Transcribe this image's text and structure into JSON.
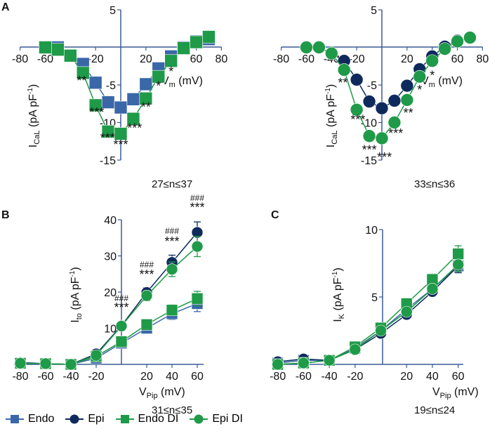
{
  "panel_labels": {
    "a": "A",
    "b": "B",
    "c": "C"
  },
  "colors": {
    "endo": "#3a67a8",
    "epi": "#0e2a5c",
    "endo_di": "#1f9a48",
    "epi_di": "#1f9a48",
    "axis": "#3a5a95"
  },
  "legend": [
    {
      "name": "Endo",
      "marker": "square",
      "color": "#3a67a8"
    },
    {
      "name": "Epi",
      "marker": "circle",
      "color": "#0e2a5c"
    },
    {
      "name": "Endo DI",
      "marker": "square",
      "color": "#1f9a48"
    },
    {
      "name": "Epi DI",
      "marker": "circle",
      "color": "#1f9a48"
    }
  ],
  "chart_data": [
    {
      "id": "A-endo",
      "type": "line",
      "xlabel": "V",
      "xlabel_sub": "m",
      "xlabel_unit": " (mV)",
      "ylabel": "I",
      "ylabel_sub": "CaL",
      "ylabel_unit": " (pA pF",
      "ylabel_sup": "-1",
      "ylabel_end": ")",
      "xlim": [
        -80,
        80
      ],
      "ylim": [
        -15,
        5
      ],
      "xticks": [
        -80,
        -60,
        -20,
        20,
        60,
        80
      ],
      "yticks": [
        5,
        -5,
        -10,
        -15
      ],
      "n_label": "27≤n≤37",
      "x": [
        -60,
        -50,
        -40,
        -30,
        -20,
        -10,
        0,
        10,
        20,
        30,
        40,
        50,
        60,
        70
      ],
      "series": [
        {
          "name": "Endo",
          "marker": "square",
          "color": "#3a67a8",
          "values": [
            0,
            0,
            -1.1,
            -2.2,
            -4.7,
            -7.3,
            -8.0,
            -6.9,
            -4.9,
            -2.8,
            -1.2,
            0,
            0.8,
            1.1
          ]
        },
        {
          "name": "Endo DI",
          "marker": "square",
          "color": "#1f9a48",
          "values": [
            0,
            -0.3,
            -1.1,
            -3.4,
            -7.7,
            -11.2,
            -11.5,
            -9.5,
            -6.8,
            -3.9,
            -1.8,
            -0.1,
            0.7,
            1.4
          ]
        }
      ],
      "annotations": [
        {
          "x": -31,
          "y": -5,
          "text": "**"
        },
        {
          "x": -19,
          "y": -9.2,
          "text": "***"
        },
        {
          "x": -10.5,
          "y": -12.6,
          "text": "***"
        },
        {
          "x": 0,
          "y": -13.5,
          "text": "***"
        },
        {
          "x": 11,
          "y": -11.3,
          "text": "***"
        },
        {
          "x": 20,
          "y": -8.5,
          "text": "**"
        },
        {
          "x": 30,
          "y": -5.7,
          "text": "*"
        },
        {
          "x": 40,
          "y": -3.8,
          "text": "*"
        }
      ]
    },
    {
      "id": "A-epi",
      "type": "line",
      "xlabel": "V",
      "xlabel_sub": "m",
      "xlabel_unit": " (mV)",
      "ylabel": "I",
      "ylabel_sub": "CaL",
      "ylabel_unit": " (pA pF",
      "ylabel_sup": "-1",
      "ylabel_end": ")",
      "xlim": [
        -80,
        80
      ],
      "ylim": [
        -15,
        5
      ],
      "xticks": [
        -80,
        -60,
        -40,
        -20,
        20,
        40,
        60,
        80
      ],
      "yticks": [
        5,
        -5,
        -10,
        -15
      ],
      "n_label": "33≤n≤36",
      "x": [
        -60,
        -50,
        -40,
        -30,
        -20,
        -10,
        0,
        10,
        20,
        30,
        40,
        50,
        60,
        70
      ],
      "series": [
        {
          "name": "Epi",
          "marker": "circle",
          "color": "#0e2a5c",
          "values": [
            0,
            0,
            -0.8,
            -1.8,
            -4.3,
            -7.2,
            -8.1,
            -7.1,
            -5.1,
            -2.9,
            -1.2,
            0.1,
            0.9,
            1.3
          ]
        },
        {
          "name": "Epi DI",
          "marker": "circle",
          "color": "#1f9a48",
          "values": [
            0,
            0,
            -0.8,
            -3.0,
            -8.3,
            -11.8,
            -12.1,
            -10.0,
            -7.0,
            -3.9,
            -1.8,
            -0.2,
            0.8,
            1.3
          ]
        }
      ],
      "annotations": [
        {
          "x": -31,
          "y": -5.3,
          "text": "**"
        },
        {
          "x": -19,
          "y": -10.2,
          "text": "***"
        },
        {
          "x": -10,
          "y": -14.2,
          "text": "***"
        },
        {
          "x": 2,
          "y": -15.2,
          "text": "***"
        },
        {
          "x": 11,
          "y": -12,
          "text": "***"
        },
        {
          "x": 21,
          "y": -9.3,
          "text": "**"
        },
        {
          "x": 30,
          "y": -6.2,
          "text": "*"
        },
        {
          "x": 40,
          "y": -4.3,
          "text": "*"
        }
      ]
    },
    {
      "id": "B",
      "type": "line",
      "xlabel": "V",
      "xlabel_sub": "Pip",
      "xlabel_unit": " (mV)",
      "ylabel": "I",
      "ylabel_sub": "to",
      "ylabel_unit": " (pA pF",
      "ylabel_sup": "-1",
      "ylabel_end": ")",
      "xlim": [
        -85,
        65
      ],
      "ylim": [
        0,
        40
      ],
      "xticks": [
        -80,
        -60,
        -40,
        -20,
        20,
        40,
        60
      ],
      "yticks": [
        10,
        20,
        30,
        40
      ],
      "n_label": "31≤n≤35",
      "x": [
        -80,
        -60,
        -40,
        -20,
        0,
        20,
        40,
        60
      ],
      "series": [
        {
          "name": "Endo",
          "marker": "square",
          "color": "#3a67a8",
          "values": [
            0.3,
            0.2,
            0,
            1.7,
            5.9,
            10.0,
            14.0,
            16.8
          ],
          "err": [
            0,
            0,
            0,
            0.4,
            0.6,
            0.8,
            1.6,
            2.2
          ]
        },
        {
          "name": "Epi",
          "marker": "circle",
          "color": "#0e2a5c",
          "values": [
            0.5,
            0.2,
            0,
            2.9,
            10.7,
            19.9,
            28.2,
            36.5
          ],
          "err": [
            0,
            0,
            0,
            0.3,
            0.6,
            1.3,
            2.0,
            2.9
          ]
        },
        {
          "name": "Endo DI",
          "marker": "square",
          "color": "#1f9a48",
          "values": [
            0.3,
            0.2,
            0,
            2.2,
            6.3,
            11.0,
            15.0,
            18.2
          ],
          "err": [
            0,
            0,
            0,
            0.3,
            0.6,
            0.9,
            1.5,
            2.0
          ]
        },
        {
          "name": "Epi DI",
          "marker": "circle",
          "color": "#1f9a48",
          "values": [
            0.3,
            0.2,
            0,
            2.5,
            10.6,
            19.0,
            26.3,
            32.6
          ],
          "err": [
            0,
            0,
            0,
            0.3,
            0.6,
            1.4,
            2.0,
            2.8
          ]
        }
      ],
      "annotations": [
        {
          "x": 0,
          "y": 17.5,
          "text": "###",
          "small": true
        },
        {
          "x": 0,
          "y": 14.6,
          "text": "***"
        },
        {
          "x": 20,
          "y": 26.8,
          "text": "###",
          "small": true
        },
        {
          "x": 20,
          "y": 23.7,
          "text": "***"
        },
        {
          "x": 40,
          "y": 36.1,
          "text": "###",
          "small": true
        },
        {
          "x": 40,
          "y": 32.8,
          "text": "***"
        },
        {
          "x": 60,
          "y": 45.2,
          "text": "###",
          "small": true
        },
        {
          "x": 60,
          "y": 42.2,
          "text": "***"
        }
      ]
    },
    {
      "id": "C",
      "type": "line",
      "xlabel": "V",
      "xlabel_sub": "Pip",
      "xlabel_unit": " (mV)",
      "ylabel": "I",
      "ylabel_sub": "K",
      "ylabel_unit": " (pA pF",
      "ylabel_sup": "-1",
      "ylabel_end": ")",
      "xlim": [
        -82,
        64
      ],
      "ylim": [
        0,
        10
      ],
      "xticks": [
        -80,
        -60,
        -40,
        -20,
        20,
        40,
        60
      ],
      "yticks": [
        5,
        10
      ],
      "n_label": "19≤n≤24",
      "x": [
        -80,
        -60,
        -40,
        -20,
        0,
        20,
        40,
        60
      ],
      "series": [
        {
          "name": "Endo",
          "marker": "square",
          "color": "#3a67a8",
          "values": [
            0.1,
            0.3,
            0.3,
            1.2,
            2.5,
            4.1,
            5.6,
            7.3
          ],
          "err": [
            0,
            0,
            0,
            0.1,
            0.2,
            0.3,
            0.3,
            0.5
          ]
        },
        {
          "name": "Epi",
          "marker": "circle",
          "color": "#0e2a5c",
          "values": [
            0.2,
            0.4,
            0.3,
            1.1,
            2.3,
            3.7,
            5.4,
            7.3
          ],
          "err": [
            0,
            0,
            0,
            0.1,
            0.2,
            0.3,
            0.3,
            0.5
          ]
        },
        {
          "name": "Endo DI",
          "marker": "square",
          "color": "#1f9a48",
          "values": [
            0,
            0.1,
            0.3,
            1.3,
            2.7,
            4.5,
            6.3,
            8.2
          ],
          "err": [
            0,
            0,
            0,
            0.1,
            0.2,
            0.4,
            0.4,
            0.6
          ]
        },
        {
          "name": "Epi DI",
          "marker": "circle",
          "color": "#1f9a48",
          "values": [
            0,
            0.1,
            0.3,
            1.1,
            2.5,
            3.9,
            5.6,
            7.4
          ],
          "err": [
            0,
            0,
            0,
            0.1,
            0.2,
            0.3,
            0.3,
            0.5
          ]
        }
      ],
      "annotations": []
    }
  ]
}
